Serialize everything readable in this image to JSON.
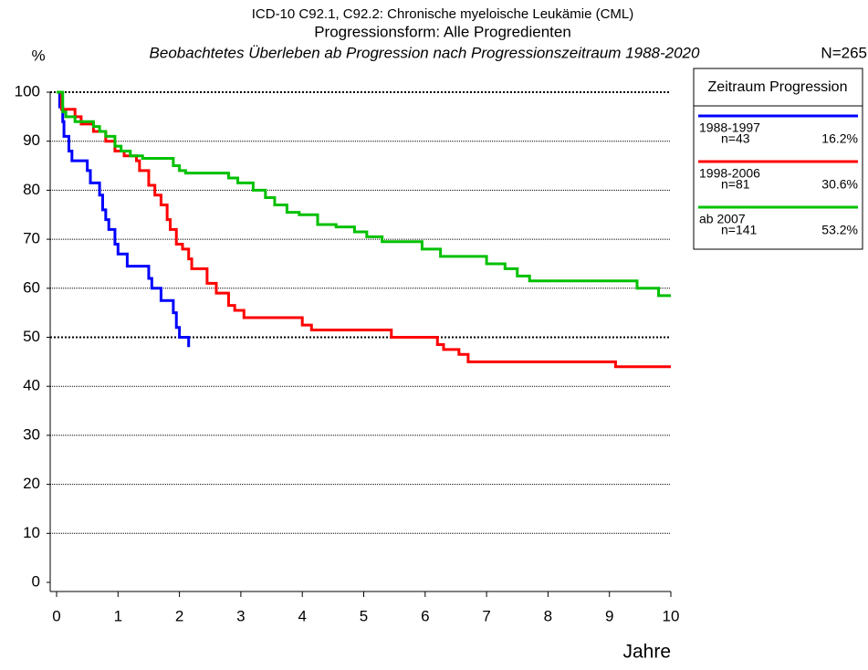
{
  "chart_data": {
    "type": "line",
    "step": "post",
    "title": "ICD-10 C92.1, C92.2: Chronische myeloische Leukämie (CML)",
    "subtitle": "Progressionsform: Alle Progredienten",
    "description": "Beobachtetes Überleben ab Progression nach Progressionszeitraum 1988-2020",
    "total": "N=265",
    "y_label": "%",
    "x_label": "Jahre",
    "legend_title": "Zeitraum Progression",
    "xlim": [
      0,
      10
    ],
    "xticks": [
      0,
      1,
      2,
      3,
      4,
      5,
      6,
      7,
      8,
      9,
      10
    ],
    "ylim": [
      0,
      100
    ],
    "yticks": [
      0,
      10,
      20,
      30,
      40,
      50,
      60,
      70,
      80,
      90,
      100
    ],
    "grid": true,
    "grid_bold": [
      50,
      100
    ],
    "series": [
      {
        "name": "1988-1997",
        "count": "n=43",
        "share": "16.2%",
        "color": "#0000ff",
        "x": [
          0,
          0.05,
          0.1,
          0.12,
          0.2,
          0.25,
          0.5,
          0.55,
          0.7,
          0.75,
          0.8,
          0.85,
          0.95,
          1.0,
          1.15,
          1.5,
          1.55,
          1.7,
          1.9,
          1.95,
          2.0,
          2.15
        ],
        "values": [
          100,
          97,
          94,
          91,
          88,
          86,
          84,
          81.5,
          79,
          76,
          74,
          72,
          69,
          67,
          64.5,
          62,
          60,
          57.5,
          55,
          52,
          50,
          48
        ]
      },
      {
        "name": "1998-2006",
        "count": "n=81",
        "share": "30.6%",
        "color": "#ff0000",
        "x": [
          0,
          0.08,
          0.3,
          0.4,
          0.6,
          0.8,
          0.95,
          1.1,
          1.3,
          1.35,
          1.5,
          1.6,
          1.7,
          1.8,
          1.85,
          1.95,
          2.05,
          2.15,
          2.2,
          2.45,
          2.6,
          2.8,
          2.9,
          3.05,
          4.0,
          4.15,
          5.45,
          6.2,
          6.3,
          6.55,
          6.7,
          9.1,
          10
        ],
        "values": [
          100,
          96.5,
          95,
          93.5,
          92,
          90,
          88,
          87,
          86,
          84,
          81,
          79,
          77,
          74,
          72,
          69,
          68,
          66,
          64,
          61,
          59,
          56.5,
          55.5,
          54,
          52.5,
          51.5,
          50,
          48.5,
          47.5,
          46.5,
          45,
          44,
          44
        ]
      },
      {
        "name": "ab 2007",
        "count": "n=141",
        "share": "53.2%",
        "color": "#00c000",
        "x": [
          0,
          0.1,
          0.15,
          0.3,
          0.6,
          0.7,
          0.8,
          0.95,
          1.05,
          1.2,
          1.4,
          1.9,
          2.0,
          2.1,
          2.8,
          2.95,
          3.2,
          3.4,
          3.55,
          3.75,
          3.95,
          4.25,
          4.55,
          4.85,
          5.05,
          5.3,
          5.95,
          6.25,
          7.0,
          7.3,
          7.5,
          7.7,
          9.45,
          9.8,
          10
        ],
        "values": [
          100,
          96,
          95,
          94,
          93,
          92,
          91,
          89,
          88,
          87,
          86.5,
          85,
          84,
          83.5,
          82.5,
          81.5,
          80,
          78.5,
          77,
          75.5,
          75,
          73,
          72.5,
          71.5,
          70.5,
          69.5,
          68,
          66.5,
          65,
          64,
          62.5,
          61.5,
          60,
          58.5,
          58.5
        ]
      }
    ]
  }
}
